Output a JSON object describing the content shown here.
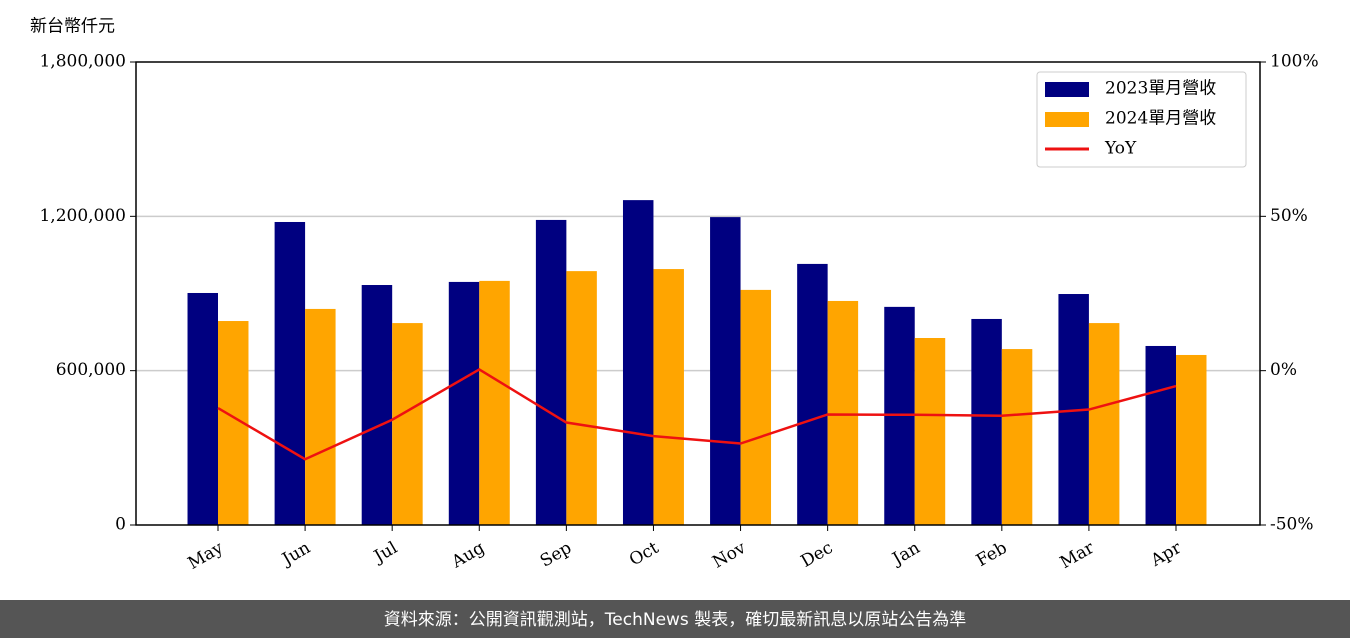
{
  "chart_data": {
    "type": "bar_line",
    "y_label": "新台幣仟元",
    "categories": [
      "May",
      "Jun",
      "Jul",
      "Aug",
      "Sep",
      "Oct",
      "Nov",
      "Dec",
      "Jan",
      "Feb",
      "Mar",
      "Apr"
    ],
    "series": [
      {
        "name": "2023單月營收",
        "color": "#000080",
        "type": "bar",
        "values": [
          902000,
          1178000,
          933000,
          945000,
          1186000,
          1263000,
          1197000,
          1015000,
          848000,
          801000,
          898000,
          696000
        ]
      },
      {
        "name": "2024單月營收",
        "color": "#ffa500",
        "type": "bar",
        "values": [
          793000,
          840000,
          785000,
          949000,
          987000,
          995000,
          914000,
          871000,
          727000,
          684000,
          785000,
          661000
        ]
      },
      {
        "name": "YoY",
        "color": "#ee1111",
        "type": "line",
        "axis": "y2",
        "values": [
          -12.1,
          -28.7,
          -15.9,
          0.4,
          -16.8,
          -21.2,
          -23.6,
          -14.2,
          -14.3,
          -14.6,
          -12.6,
          -5.0
        ]
      }
    ],
    "ylim": [
      0,
      1800000
    ],
    "yticks": [
      0,
      {
        "value": 600000,
        "label": "600,000"
      },
      {
        "value": 1200000,
        "label": "1,200,000"
      },
      {
        "value": 1800000,
        "label": "1,800,000"
      }
    ],
    "y2lim": [
      -50,
      100
    ],
    "y2ticks": [
      {
        "value": -50,
        "label": "-50%"
      },
      {
        "value": 0,
        "label": "0%"
      },
      {
        "value": 50,
        "label": "50%"
      },
      {
        "value": 100,
        "label": "100%"
      }
    ],
    "grid": true,
    "legend": "upper right",
    "footer": "資料來源：公開資訊觀測站，TechNews 製表，確切最新訊息以原站公告為準"
  }
}
